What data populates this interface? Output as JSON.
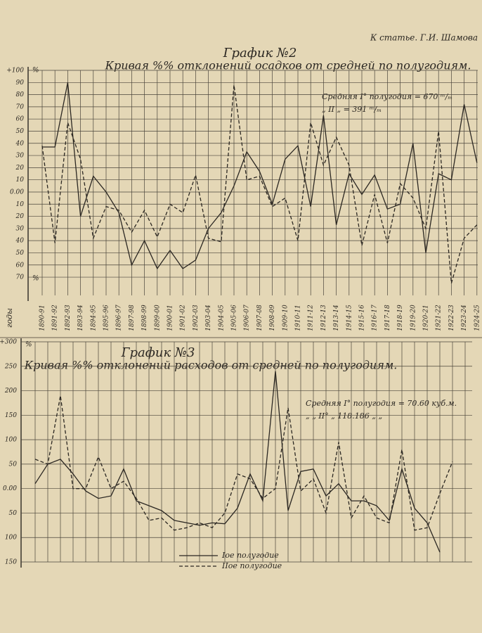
{
  "header": "К статье. Г.И. Шамова",
  "chart_data": [
    {
      "type": "line",
      "title": "График №2",
      "subtitle": "Кривая %% отклонений осадков от средней по полугодиям.",
      "y_unit": "%",
      "xlabel": "годы",
      "annotations": [
        "Средняя I° полугодия = 670 ᵐ/ₘ",
        "„ II „ = 391 ᵐ/ₘ"
      ],
      "categories": [
        "1890-91",
        "1891-92",
        "1892-93",
        "1893-94",
        "1894-95",
        "1895-96",
        "1896-97",
        "1897-98",
        "1898-99",
        "1899-00",
        "1900-01",
        "1901-02",
        "1902-03",
        "1903-04",
        "1904-05",
        "1905-06",
        "1906-07",
        "1907-08",
        "1908-09",
        "1909-10",
        "1910-11",
        "1911-12",
        "1912-13",
        "1913-14",
        "1914-15",
        "1915-16",
        "1916-17",
        "1917-18",
        "1918-19",
        "1919-20",
        "1920-21",
        "1921-22",
        "1922-23",
        "1923-24",
        "1924-25"
      ],
      "ylim": [
        -85,
        100
      ],
      "yticks": [
        {
          "value": 100,
          "label": "+100"
        },
        90,
        80,
        70,
        60,
        50,
        40,
        30,
        20,
        10,
        {
          "value": 0,
          "label": "0.00"
        },
        {
          "value": -10,
          "label": "10"
        },
        {
          "value": -20,
          "label": "20"
        },
        {
          "value": -30,
          "label": "30"
        },
        {
          "value": -40,
          "label": "40"
        },
        {
          "value": -50,
          "label": "50"
        },
        {
          "value": -60,
          "label": "60"
        },
        {
          "value": -70,
          "label": "70"
        }
      ],
      "grid": true,
      "series": [
        {
          "color": "#2b2722",
          "style": "solid",
          "values": [
            37,
            37,
            90,
            -20,
            13,
            0,
            -17,
            -60,
            -40,
            -63,
            -48,
            -63,
            -56,
            -30,
            -17,
            5,
            33,
            17,
            -10,
            27,
            38,
            -12,
            63,
            -27,
            15,
            -2,
            14,
            -14,
            -10,
            40,
            -50,
            15,
            10,
            72,
            24
          ]
        },
        {
          "color": "#2b2722",
          "style": "dashed",
          "values": [
            38,
            -42,
            57,
            27,
            -38,
            -12,
            -15,
            -33,
            -15,
            -37,
            -10,
            -17,
            14,
            -38,
            -41,
            88,
            10,
            13,
            -12,
            -5,
            -40,
            57,
            22,
            45,
            22,
            -44,
            -2,
            -42,
            7,
            -5,
            -30,
            50,
            -75,
            -38,
            -27
          ]
        }
      ]
    },
    {
      "type": "line",
      "title": "График №3",
      "subtitle": "Кривая %% отклонений расходов от средней по полугодиям.",
      "y_unit": "%",
      "annotations": [
        "Средняя I° полугодия = 70.60 куб.м.",
        "„ „ II° „ 118.186 „ „"
      ],
      "ylim": [
        -150,
        300
      ],
      "yticks": [
        {
          "value": 300,
          "label": "+300"
        },
        250,
        200,
        150,
        100,
        50,
        {
          "value": 0,
          "label": "0.00"
        },
        {
          "value": -50,
          "label": "50"
        },
        {
          "value": -100,
          "label": "100"
        },
        {
          "value": -150,
          "label": "150"
        }
      ],
      "grid": true,
      "legend": "bottom",
      "series": [
        {
          "name": "Iое полугодие",
          "color": "#2b2722",
          "style": "solid",
          "values": [
            10,
            50,
            60,
            30,
            -5,
            -20,
            -15,
            40,
            -25,
            -35,
            -45,
            -65,
            -70,
            -75,
            -70,
            -72,
            -40,
            30,
            -25,
            240,
            -45,
            35,
            40,
            -15,
            10,
            -25,
            -25,
            -35,
            -65,
            40,
            -40,
            -70,
            -130,
            null
          ]
        },
        {
          "name": "IIое полугодие",
          "color": "#2b2722",
          "style": "dashed",
          "values": [
            60,
            50,
            190,
            0,
            0,
            65,
            0,
            15,
            -20,
            -65,
            -60,
            -85,
            -80,
            -70,
            -80,
            -50,
            30,
            20,
            -20,
            0,
            165,
            -5,
            20,
            -50,
            95,
            -60,
            -15,
            -60,
            -70,
            80,
            -85,
            -80,
            -10,
            55
          ]
        }
      ]
    }
  ]
}
